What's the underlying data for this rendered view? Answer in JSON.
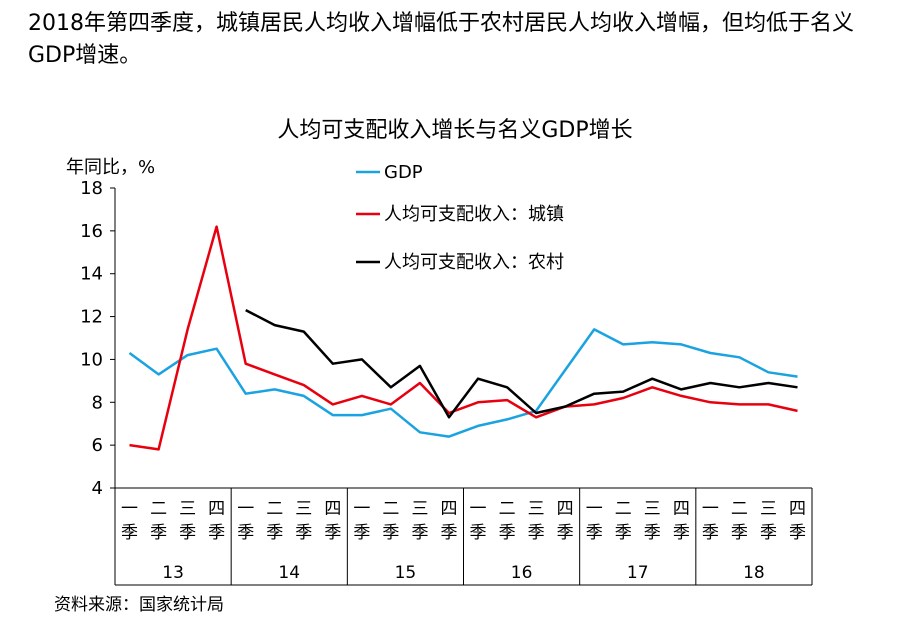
{
  "headline": "2018年第四季度，城镇居民人均收入增幅低于农村居民人均收入增幅，但均低于名义GDP增速。",
  "source": "资料来源：国家统计局",
  "chart_data": {
    "type": "line",
    "title": "人均可支配收入增长与名义GDP增长",
    "ylabel": "年同比，%",
    "xlabel": "",
    "ylim": [
      4,
      18
    ],
    "yticks": [
      4,
      6,
      8,
      10,
      12,
      14,
      16,
      18
    ],
    "grid": false,
    "legend_position": "top-center",
    "quarter_labels": [
      "一季",
      "二季",
      "三季",
      "四季"
    ],
    "years": [
      "13",
      "14",
      "15",
      "16",
      "17",
      "18"
    ],
    "categories": [
      "13Q1",
      "13Q2",
      "13Q3",
      "13Q4",
      "14Q1",
      "14Q2",
      "14Q3",
      "14Q4",
      "15Q1",
      "15Q2",
      "15Q3",
      "15Q4",
      "16Q1",
      "16Q2",
      "16Q3",
      "16Q4",
      "17Q1",
      "17Q2",
      "17Q3",
      "17Q4",
      "18Q1",
      "18Q2",
      "18Q3",
      "18Q4"
    ],
    "series": [
      {
        "name": "GDP",
        "color": "#1aa3e0",
        "values": [
          10.3,
          9.3,
          10.2,
          10.5,
          8.4,
          8.6,
          8.3,
          7.4,
          7.4,
          7.7,
          6.6,
          6.4,
          6.9,
          7.2,
          7.6,
          9.5,
          11.4,
          10.7,
          10.8,
          10.7,
          10.3,
          10.1,
          9.4,
          9.2
        ]
      },
      {
        "name": "人均可支配收入：城镇",
        "color": "#e8000f",
        "values": [
          6.0,
          5.8,
          11.4,
          16.2,
          9.8,
          9.3,
          8.8,
          7.9,
          8.3,
          7.9,
          8.9,
          7.5,
          8.0,
          8.1,
          7.3,
          7.8,
          7.9,
          8.2,
          8.7,
          8.3,
          8.0,
          7.9,
          7.9,
          7.6
        ]
      },
      {
        "name": "人均可支配收入：农村",
        "color": "#000000",
        "values": [
          null,
          null,
          null,
          null,
          12.3,
          11.6,
          11.3,
          9.8,
          10.0,
          8.7,
          9.7,
          7.3,
          9.1,
          8.7,
          7.5,
          7.8,
          8.4,
          8.5,
          9.1,
          8.6,
          8.9,
          8.7,
          8.9,
          8.7
        ]
      }
    ]
  }
}
